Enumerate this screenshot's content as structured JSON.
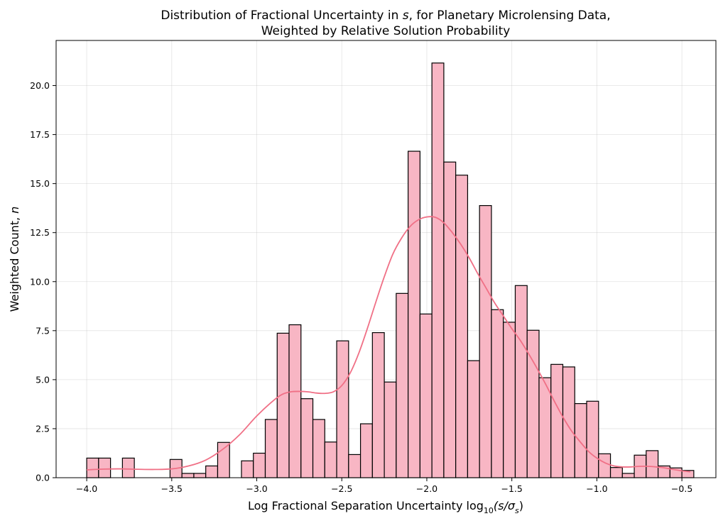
{
  "chart_data": {
    "type": "bar",
    "title_line1": "Distribution of Fractional Uncertainty in ",
    "title_var": "s",
    "title_line1_end": ", for Planetary Microlensing Data,",
    "title_line2": "Weighted by Relative Solution Probability",
    "xlabel_prefix": "Log Fractional Separation Uncertainty log",
    "xlabel_sub": "10",
    "xlabel_expr": "(s/σ",
    "xlabel_expr_sub": "s",
    "xlabel_expr_end": ")",
    "ylabel_prefix": "Weighted Count, ",
    "ylabel_var": "n",
    "xlim": [
      -4.18,
      -0.3
    ],
    "ylim": [
      0,
      22.3
    ],
    "grid": true,
    "x_ticks": [
      -4.0,
      -3.5,
      -3.0,
      -2.5,
      -2.0,
      -1.5,
      -1.0,
      -0.5
    ],
    "x_tick_labels": [
      "−4.0",
      "−3.5",
      "−3.0",
      "−2.5",
      "−2.0",
      "−1.5",
      "−1.0",
      "−0.5"
    ],
    "y_ticks": [
      0,
      2.5,
      5,
      7.5,
      10,
      12.5,
      15,
      17.5,
      20
    ],
    "y_tick_labels": [
      "0.0",
      "2.5",
      "5.0",
      "7.5",
      "10.0",
      "12.5",
      "15.0",
      "17.5",
      "20.0"
    ],
    "bin_start": -4.0,
    "bin_width": 0.07,
    "values": [
      1.0,
      1.0,
      0,
      1.0,
      0,
      0,
      0,
      0.93,
      0.22,
      0.22,
      0.6,
      1.8,
      0,
      0.86,
      1.25,
      2.97,
      7.37,
      7.8,
      4.03,
      2.97,
      1.82,
      6.98,
      1.18,
      2.75,
      7.4,
      4.88,
      9.4,
      16.65,
      8.35,
      21.15,
      16.1,
      15.43,
      5.97,
      13.88,
      8.57,
      7.93,
      9.8,
      7.52,
      5.1,
      5.78,
      5.65,
      3.78,
      3.9,
      1.22,
      0.52,
      0.22,
      1.15,
      1.38,
      0.6,
      0.5,
      0.37
    ],
    "kde": {
      "x": [
        -4.0,
        -3.9,
        -3.8,
        -3.7,
        -3.6,
        -3.5,
        -3.4,
        -3.3,
        -3.2,
        -3.1,
        -3.0,
        -2.9,
        -2.85,
        -2.8,
        -2.75,
        -2.7,
        -2.65,
        -2.6,
        -2.55,
        -2.5,
        -2.45,
        -2.4,
        -2.35,
        -2.3,
        -2.25,
        -2.2,
        -2.15,
        -2.1,
        -2.05,
        -2.0,
        -1.95,
        -1.9,
        -1.85,
        -1.8,
        -1.75,
        -1.7,
        -1.65,
        -1.6,
        -1.55,
        -1.5,
        -1.45,
        -1.4,
        -1.35,
        -1.3,
        -1.25,
        -1.2,
        -1.15,
        -1.1,
        -1.05,
        -1.0,
        -0.95,
        -0.9,
        -0.85,
        -0.8,
        -0.75,
        -0.7,
        -0.65,
        -0.6,
        -0.55,
        -0.5,
        -0.45
      ],
      "y": [
        0.4,
        0.44,
        0.45,
        0.43,
        0.42,
        0.45,
        0.6,
        0.9,
        1.45,
        2.2,
        3.15,
        3.95,
        4.25,
        4.38,
        4.4,
        4.38,
        4.32,
        4.3,
        4.38,
        4.7,
        5.35,
        6.35,
        7.6,
        8.95,
        10.25,
        11.4,
        12.2,
        12.8,
        13.15,
        13.3,
        13.28,
        13.0,
        12.5,
        11.9,
        11.2,
        10.4,
        9.65,
        8.9,
        8.25,
        7.6,
        7.0,
        6.3,
        5.55,
        4.75,
        3.9,
        3.1,
        2.4,
        1.85,
        1.35,
        1.0,
        0.75,
        0.6,
        0.55,
        0.55,
        0.58,
        0.58,
        0.55,
        0.5,
        0.42,
        0.35,
        0.3
      ]
    }
  }
}
